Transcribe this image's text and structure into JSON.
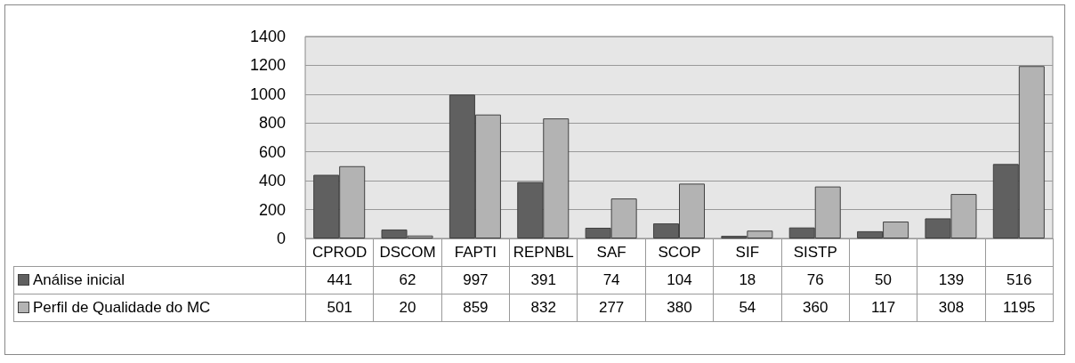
{
  "chart_data": {
    "type": "bar",
    "categories": [
      "CPROD",
      "DSCOM",
      "FAPTI",
      "REPNBL",
      "SAF",
      "SCOP",
      "SIF",
      "SISTP",
      null,
      null,
      null
    ],
    "series": [
      {
        "name": "Análise inicial",
        "color": "#606060",
        "values": [
          441,
          62,
          997,
          391,
          74,
          104,
          18,
          76,
          50,
          139,
          516
        ]
      },
      {
        "name": "Perfil de Qualidade do MC",
        "color": "#b3b3b3",
        "values": [
          501,
          20,
          859,
          832,
          277,
          380,
          54,
          360,
          117,
          308,
          1195
        ]
      }
    ],
    "ylim": [
      0,
      1400
    ],
    "yticks": [
      0,
      200,
      400,
      600,
      800,
      1000,
      1200,
      1400
    ],
    "grid": "y",
    "legend": "bottom left",
    "data_labels": true
  }
}
